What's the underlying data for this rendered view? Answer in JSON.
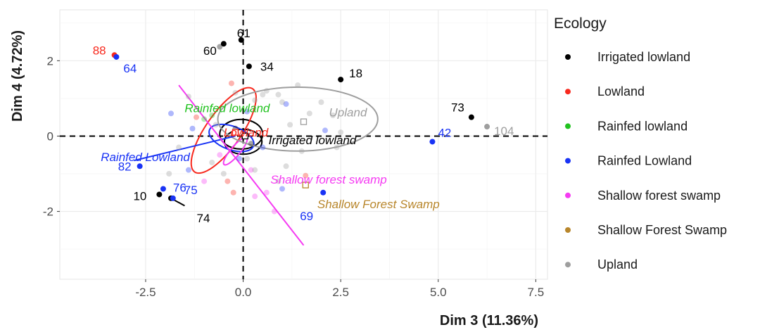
{
  "chart_data": {
    "type": "scatter",
    "xlabel": "Dim 3 (11.36%)",
    "ylabel": "Dim 4 (4.72%)",
    "xlim": [
      -4.7,
      7.8
    ],
    "ylim": [
      -3.8,
      3.35
    ],
    "xticks": [
      -2.5,
      0.0,
      2.5,
      5.0,
      7.5
    ],
    "xtick_labels": [
      "-2.5",
      "0.0",
      "2.5",
      "5.0",
      "7.5"
    ],
    "yticks": [
      -2,
      0,
      2
    ],
    "ytick_labels": [
      "-2",
      "0",
      "2"
    ],
    "grid": true,
    "legend": {
      "title": "Ecology",
      "placement": "right",
      "entries": [
        {
          "label": "Irrigated lowland",
          "color": "#000000"
        },
        {
          "label": "Lowland",
          "color": "#F8291E"
        },
        {
          "label": "Rainfed lowland",
          "color": "#21C21F"
        },
        {
          "label": "Rainfed Lowland",
          "color": "#1933F5"
        },
        {
          "label": "Shallow forest swamp",
          "color": "#F53BF2"
        },
        {
          "label": "Shallow Forest Swamp",
          "color": "#B8862B"
        },
        {
          "label": "Upland",
          "color": "#9E9E9E"
        }
      ]
    },
    "labeled_points": [
      {
        "label": "61",
        "x": -0.05,
        "y": 2.55,
        "group": "Irrigated lowland"
      },
      {
        "label": "60",
        "x": -0.5,
        "y": 2.45,
        "group": "Irrigated lowland"
      },
      {
        "label": "34",
        "x": 0.15,
        "y": 1.85,
        "group": "Irrigated lowland"
      },
      {
        "label": "18",
        "x": 2.5,
        "y": 1.5,
        "group": "Irrigated lowland"
      },
      {
        "label": "73",
        "x": 5.85,
        "y": 0.5,
        "group": "Irrigated lowland"
      },
      {
        "label": "10",
        "x": -2.15,
        "y": -1.55,
        "group": "Irrigated lowland"
      },
      {
        "label": "74",
        "x": -1.85,
        "y": -1.65,
        "group": "Irrigated lowland"
      },
      {
        "label": "88",
        "x": -3.3,
        "y": 2.15,
        "group": "Lowland"
      },
      {
        "label": "64",
        "x": -3.25,
        "y": 2.1,
        "group": "Rainfed Lowland"
      },
      {
        "label": "82",
        "x": -2.65,
        "y": -0.8,
        "group": "Rainfed Lowland"
      },
      {
        "label": "76",
        "x": -2.05,
        "y": -1.4,
        "group": "Rainfed Lowland"
      },
      {
        "label": "75",
        "x": -1.8,
        "y": -1.65,
        "group": "Rainfed Lowland"
      },
      {
        "label": "42",
        "x": 4.85,
        "y": -0.15,
        "group": "Rainfed Lowland"
      },
      {
        "label": "69",
        "x": 2.05,
        "y": -1.5,
        "group": "Rainfed Lowland"
      },
      {
        "label": "104",
        "x": 6.25,
        "y": 0.25,
        "group": "Upland"
      }
    ],
    "points": [
      {
        "x": -0.6,
        "y": 2.37,
        "group": "Irrigated lowland"
      },
      {
        "x": 0.0,
        "y": 0.0,
        "group": "Irrigated lowland"
      },
      {
        "x": -0.2,
        "y": 0.2,
        "group": "Irrigated lowland"
      },
      {
        "x": 0.2,
        "y": -0.2,
        "group": "Irrigated lowland"
      },
      {
        "x": -1.2,
        "y": 0.5,
        "group": "Lowland"
      },
      {
        "x": -0.3,
        "y": 1.4,
        "group": "Lowland"
      },
      {
        "x": -0.4,
        "y": -1.2,
        "group": "Lowland"
      },
      {
        "x": 1.6,
        "y": -1.05,
        "group": "Lowland"
      },
      {
        "x": -0.25,
        "y": -1.5,
        "group": "Lowland"
      },
      {
        "x": -1.0,
        "y": 0.45,
        "group": "Rainfed lowland"
      },
      {
        "x": -0.8,
        "y": 0.55,
        "group": "Rainfed lowland"
      },
      {
        "x": -1.3,
        "y": 0.2,
        "group": "Rainfed Lowland"
      },
      {
        "x": -1.85,
        "y": 0.6,
        "group": "Rainfed Lowland"
      },
      {
        "x": 0.1,
        "y": 0.65,
        "group": "Rainfed Lowland"
      },
      {
        "x": 1.1,
        "y": 0.85,
        "group": "Rainfed Lowland"
      },
      {
        "x": -0.1,
        "y": -0.6,
        "group": "Rainfed Lowland"
      },
      {
        "x": 0.5,
        "y": -0.3,
        "group": "Rainfed Lowland"
      },
      {
        "x": 2.1,
        "y": 0.15,
        "group": "Rainfed Lowland"
      },
      {
        "x": -1.4,
        "y": -0.9,
        "group": "Rainfed Lowland"
      },
      {
        "x": 1.0,
        "y": -1.4,
        "group": "Rainfed Lowland"
      },
      {
        "x": -0.6,
        "y": -0.5,
        "group": "Shallow forest swamp"
      },
      {
        "x": 0.2,
        "y": -0.9,
        "group": "Shallow forest swamp"
      },
      {
        "x": -1.0,
        "y": -1.2,
        "group": "Shallow forest swamp"
      },
      {
        "x": 0.3,
        "y": -1.6,
        "group": "Shallow forest swamp"
      },
      {
        "x": 0.6,
        "y": -1.5,
        "group": "Shallow forest swamp"
      },
      {
        "x": 0.8,
        "y": -2.0,
        "group": "Shallow forest swamp"
      },
      {
        "x": 1.6,
        "y": -1.3,
        "group": "Shallow Forest Swamp"
      },
      {
        "x": -1.4,
        "y": 1.05,
        "group": "Upland"
      },
      {
        "x": 0.5,
        "y": 1.1,
        "group": "Upland"
      },
      {
        "x": 0.6,
        "y": 1.2,
        "group": "Upland"
      },
      {
        "x": 0.9,
        "y": 1.1,
        "group": "Upland"
      },
      {
        "x": 1.0,
        "y": 0.9,
        "group": "Upland"
      },
      {
        "x": 1.4,
        "y": 1.35,
        "group": "Upland"
      },
      {
        "x": 2.0,
        "y": 0.9,
        "group": "Upland"
      },
      {
        "x": 2.3,
        "y": 0.55,
        "group": "Upland"
      },
      {
        "x": 1.7,
        "y": 0.6,
        "group": "Upland"
      },
      {
        "x": 1.2,
        "y": 0.3,
        "group": "Upland"
      },
      {
        "x": -0.2,
        "y": 1.15,
        "group": "Upland"
      },
      {
        "x": 0.3,
        "y": 0.95,
        "group": "Upland"
      },
      {
        "x": -0.7,
        "y": 0.3,
        "group": "Upland"
      },
      {
        "x": -1.65,
        "y": -0.3,
        "group": "Upland"
      },
      {
        "x": -1.9,
        "y": -1.0,
        "group": "Upland"
      },
      {
        "x": -0.8,
        "y": -0.7,
        "group": "Upland"
      },
      {
        "x": 0.1,
        "y": -0.6,
        "group": "Upland"
      },
      {
        "x": 0.3,
        "y": -0.9,
        "group": "Upland"
      },
      {
        "x": 1.1,
        "y": -0.8,
        "group": "Upland"
      },
      {
        "x": 2.4,
        "y": -0.3,
        "group": "Upland"
      },
      {
        "x": 0.9,
        "y": -1.2,
        "group": "Upland"
      },
      {
        "x": -0.5,
        "y": -1.0,
        "group": "Upland"
      },
      {
        "x": 2.5,
        "y": 0.1,
        "group": "Upland"
      },
      {
        "x": 1.5,
        "y": -0.4,
        "group": "Upland"
      }
    ],
    "ellipses": [
      {
        "group": "Irrigated lowland",
        "cx": -0.05,
        "cy": 0.05,
        "rx": 0.55,
        "ry": 0.38,
        "angle": 0
      },
      {
        "group": "Irrigated lowland",
        "cx": 0.0,
        "cy": -0.15,
        "rx": 0.48,
        "ry": 0.32,
        "angle": 0
      },
      {
        "group": "Lowland",
        "cx": -0.5,
        "cy": 0.15,
        "rx": 1.3,
        "ry": 0.45,
        "angle": -55
      },
      {
        "group": "Rainfed Lowland",
        "cx": -0.3,
        "cy": -0.05,
        "rx": 0.6,
        "ry": 0.3,
        "angle": 20
      },
      {
        "group": "Shallow forest swamp",
        "cx": -0.2,
        "cy": -0.4,
        "rx": 0.45,
        "ry": 0.12,
        "angle": -50
      },
      {
        "group": "Upland",
        "cx": 1.4,
        "cy": 0.45,
        "rx": 2.05,
        "ry": 0.82,
        "angle": 0
      }
    ],
    "lines": [
      {
        "group": "Rainfed Lowland",
        "x1": -2.8,
        "y1": -0.65,
        "x2": -0.2,
        "y2": 0.0
      },
      {
        "group": "Shallow forest swamp",
        "x1": -1.65,
        "y1": 1.35,
        "x2": 1.55,
        "y2": -2.9
      },
      {
        "group": "Irrigated lowland",
        "x1": -1.85,
        "y1": -1.65,
        "x2": -1.5,
        "y2": -1.85
      }
    ],
    "centroids": [
      {
        "group": "Upland",
        "x": 1.55,
        "y": 0.38
      },
      {
        "group": "Irrigated lowland",
        "x": 0.05,
        "y": 0.0
      },
      {
        "group": "Lowland",
        "x": -0.2,
        "y": 0.1
      },
      {
        "group": "Shallow Forest Swamp",
        "x": 1.6,
        "y": -1.3
      }
    ],
    "group_labels": [
      {
        "text": "Rainfed lowland",
        "x": -1.5,
        "y": 0.75,
        "group": "Rainfed lowland"
      },
      {
        "text": "Lowland",
        "x": -0.5,
        "y": 0.1,
        "group": "Lowland"
      },
      {
        "text": "Irrigated lowland",
        "x": 0.65,
        "y": -0.1,
        "group": "Irrigated lowland"
      },
      {
        "text": "Upland",
        "x": 2.2,
        "y": 0.63,
        "group": "Upland"
      },
      {
        "text": "Rainfed Lowland",
        "x": -3.65,
        "y": -0.55,
        "group": "Rainfed Lowland"
      },
      {
        "text": "Shallow forest swamp",
        "x": 0.7,
        "y": -1.15,
        "group": "Shallow forest swamp"
      },
      {
        "text": "Shallow Forest Swamp",
        "x": 1.9,
        "y": -1.8,
        "group": "Shallow Forest Swamp"
      }
    ]
  }
}
